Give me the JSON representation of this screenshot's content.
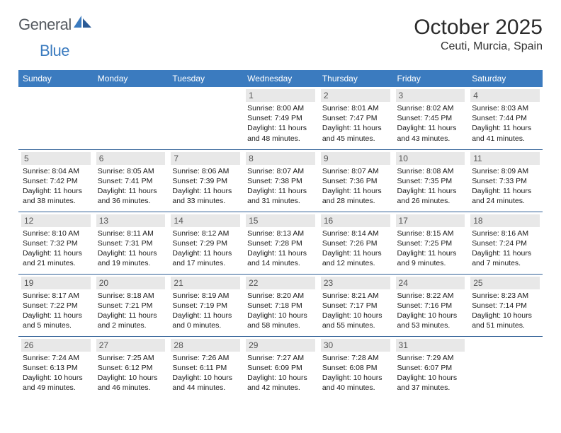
{
  "logo": {
    "word1": "General",
    "word2": "Blue"
  },
  "title": "October 2025",
  "location": "Ceuti, Murcia, Spain",
  "colors": {
    "header_bg": "#3b7bbf",
    "header_text": "#ffffff",
    "daynum_bg": "#e8e8e8",
    "daynum_text": "#555555",
    "cell_border": "#2f5f96",
    "body_text": "#1a1a1a",
    "logo_gray": "#555a60",
    "logo_blue": "#3b7bbf"
  },
  "day_headers": [
    "Sunday",
    "Monday",
    "Tuesday",
    "Wednesday",
    "Thursday",
    "Friday",
    "Saturday"
  ],
  "weeks": [
    [
      null,
      null,
      null,
      {
        "n": "1",
        "sr": "8:00 AM",
        "ss": "7:49 PM",
        "dl": "11 hours and 48 minutes."
      },
      {
        "n": "2",
        "sr": "8:01 AM",
        "ss": "7:47 PM",
        "dl": "11 hours and 45 minutes."
      },
      {
        "n": "3",
        "sr": "8:02 AM",
        "ss": "7:45 PM",
        "dl": "11 hours and 43 minutes."
      },
      {
        "n": "4",
        "sr": "8:03 AM",
        "ss": "7:44 PM",
        "dl": "11 hours and 41 minutes."
      }
    ],
    [
      {
        "n": "5",
        "sr": "8:04 AM",
        "ss": "7:42 PM",
        "dl": "11 hours and 38 minutes."
      },
      {
        "n": "6",
        "sr": "8:05 AM",
        "ss": "7:41 PM",
        "dl": "11 hours and 36 minutes."
      },
      {
        "n": "7",
        "sr": "8:06 AM",
        "ss": "7:39 PM",
        "dl": "11 hours and 33 minutes."
      },
      {
        "n": "8",
        "sr": "8:07 AM",
        "ss": "7:38 PM",
        "dl": "11 hours and 31 minutes."
      },
      {
        "n": "9",
        "sr": "8:07 AM",
        "ss": "7:36 PM",
        "dl": "11 hours and 28 minutes."
      },
      {
        "n": "10",
        "sr": "8:08 AM",
        "ss": "7:35 PM",
        "dl": "11 hours and 26 minutes."
      },
      {
        "n": "11",
        "sr": "8:09 AM",
        "ss": "7:33 PM",
        "dl": "11 hours and 24 minutes."
      }
    ],
    [
      {
        "n": "12",
        "sr": "8:10 AM",
        "ss": "7:32 PM",
        "dl": "11 hours and 21 minutes."
      },
      {
        "n": "13",
        "sr": "8:11 AM",
        "ss": "7:31 PM",
        "dl": "11 hours and 19 minutes."
      },
      {
        "n": "14",
        "sr": "8:12 AM",
        "ss": "7:29 PM",
        "dl": "11 hours and 17 minutes."
      },
      {
        "n": "15",
        "sr": "8:13 AM",
        "ss": "7:28 PM",
        "dl": "11 hours and 14 minutes."
      },
      {
        "n": "16",
        "sr": "8:14 AM",
        "ss": "7:26 PM",
        "dl": "11 hours and 12 minutes."
      },
      {
        "n": "17",
        "sr": "8:15 AM",
        "ss": "7:25 PM",
        "dl": "11 hours and 9 minutes."
      },
      {
        "n": "18",
        "sr": "8:16 AM",
        "ss": "7:24 PM",
        "dl": "11 hours and 7 minutes."
      }
    ],
    [
      {
        "n": "19",
        "sr": "8:17 AM",
        "ss": "7:22 PM",
        "dl": "11 hours and 5 minutes."
      },
      {
        "n": "20",
        "sr": "8:18 AM",
        "ss": "7:21 PM",
        "dl": "11 hours and 2 minutes."
      },
      {
        "n": "21",
        "sr": "8:19 AM",
        "ss": "7:19 PM",
        "dl": "11 hours and 0 minutes."
      },
      {
        "n": "22",
        "sr": "8:20 AM",
        "ss": "7:18 PM",
        "dl": "10 hours and 58 minutes."
      },
      {
        "n": "23",
        "sr": "8:21 AM",
        "ss": "7:17 PM",
        "dl": "10 hours and 55 minutes."
      },
      {
        "n": "24",
        "sr": "8:22 AM",
        "ss": "7:16 PM",
        "dl": "10 hours and 53 minutes."
      },
      {
        "n": "25",
        "sr": "8:23 AM",
        "ss": "7:14 PM",
        "dl": "10 hours and 51 minutes."
      }
    ],
    [
      {
        "n": "26",
        "sr": "7:24 AM",
        "ss": "6:13 PM",
        "dl": "10 hours and 49 minutes."
      },
      {
        "n": "27",
        "sr": "7:25 AM",
        "ss": "6:12 PM",
        "dl": "10 hours and 46 minutes."
      },
      {
        "n": "28",
        "sr": "7:26 AM",
        "ss": "6:11 PM",
        "dl": "10 hours and 44 minutes."
      },
      {
        "n": "29",
        "sr": "7:27 AM",
        "ss": "6:09 PM",
        "dl": "10 hours and 42 minutes."
      },
      {
        "n": "30",
        "sr": "7:28 AM",
        "ss": "6:08 PM",
        "dl": "10 hours and 40 minutes."
      },
      {
        "n": "31",
        "sr": "7:29 AM",
        "ss": "6:07 PM",
        "dl": "10 hours and 37 minutes."
      },
      null
    ]
  ],
  "labels": {
    "sunrise": "Sunrise: ",
    "sunset": "Sunset: ",
    "daylight": "Daylight: "
  }
}
